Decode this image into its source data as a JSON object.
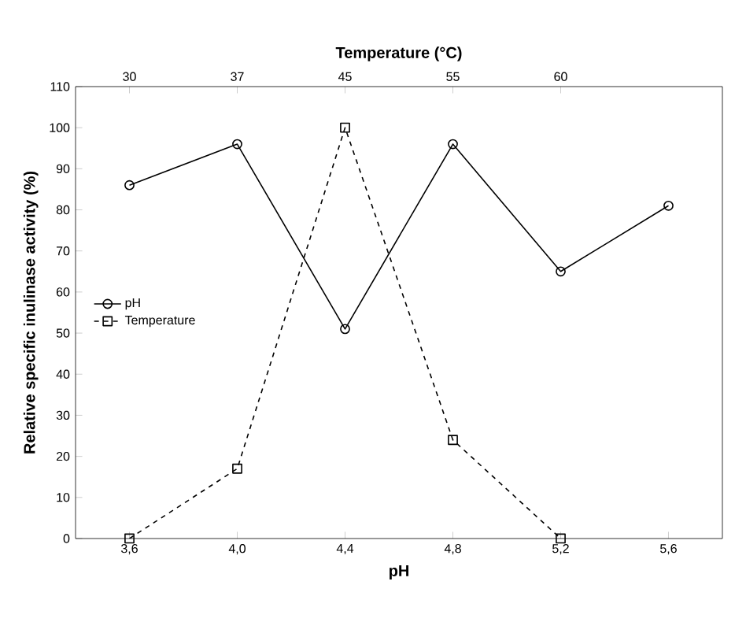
{
  "chart_data": {
    "type": "line",
    "x2label": "Temperature (°C)",
    "xlabel": "pH",
    "ylabel": "Relative specific inulinase activity (%)",
    "categories": [
      "3,6",
      "4,0",
      "4,4",
      "4,8",
      "5,2",
      "5,6"
    ],
    "annotations": [
      "30",
      "37",
      "45",
      "55",
      "60"
    ],
    "ylim": [
      0,
      110
    ],
    "yticks": [
      0,
      10,
      20,
      30,
      40,
      50,
      60,
      70,
      80,
      90,
      100,
      110
    ],
    "legend": "left",
    "series": [
      {
        "name": "pH",
        "color": "#000000",
        "values": [
          86,
          96,
          51,
          96,
          65,
          81
        ],
        "marker": "circle",
        "line_style": "solid"
      },
      {
        "name": "Temperature",
        "color": "#000000",
        "values": [
          0,
          17,
          100,
          24,
          0,
          null
        ],
        "marker": "square",
        "line_style": "dashed"
      }
    ]
  }
}
